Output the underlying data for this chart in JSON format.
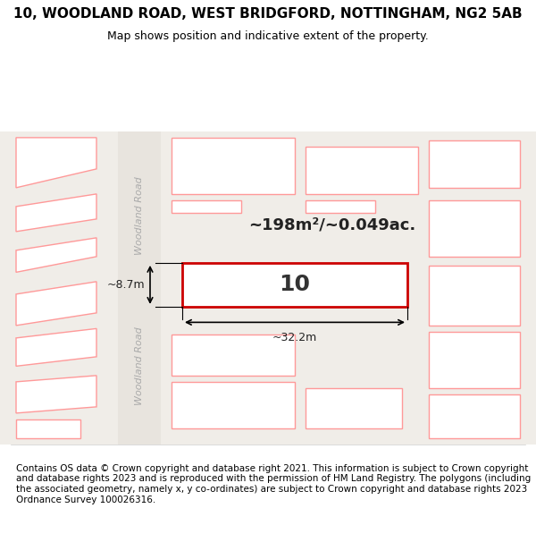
{
  "title_line1": "10, WOODLAND ROAD, WEST BRIDGFORD, NOTTINGHAM, NG2 5AB",
  "title_line2": "Map shows position and indicative extent of the property.",
  "footer_text": "Contains OS data © Crown copyright and database right 2021. This information is subject to Crown copyright and database rights 2023 and is reproduced with the permission of HM Land Registry. The polygons (including the associated geometry, namely x, y co-ordinates) are subject to Crown copyright and database rights 2023 Ordnance Survey 100026316.",
  "area_text": "~198m²/~0.049ac.",
  "property_number": "10",
  "dim_width": "~32.2m",
  "dim_height": "~8.7m",
  "bg_color": "#f0ede8",
  "map_bg": "#f0ede8",
  "property_fill": "#ffffff",
  "property_edge": "#cc0000",
  "other_buildings_fill": "#ffffff",
  "other_buildings_edge": "#ff9999",
  "road_color": "#ffffff",
  "road_label": "Woodland Road",
  "title_fontsize": 11,
  "subtitle_fontsize": 9,
  "footer_fontsize": 7.5
}
